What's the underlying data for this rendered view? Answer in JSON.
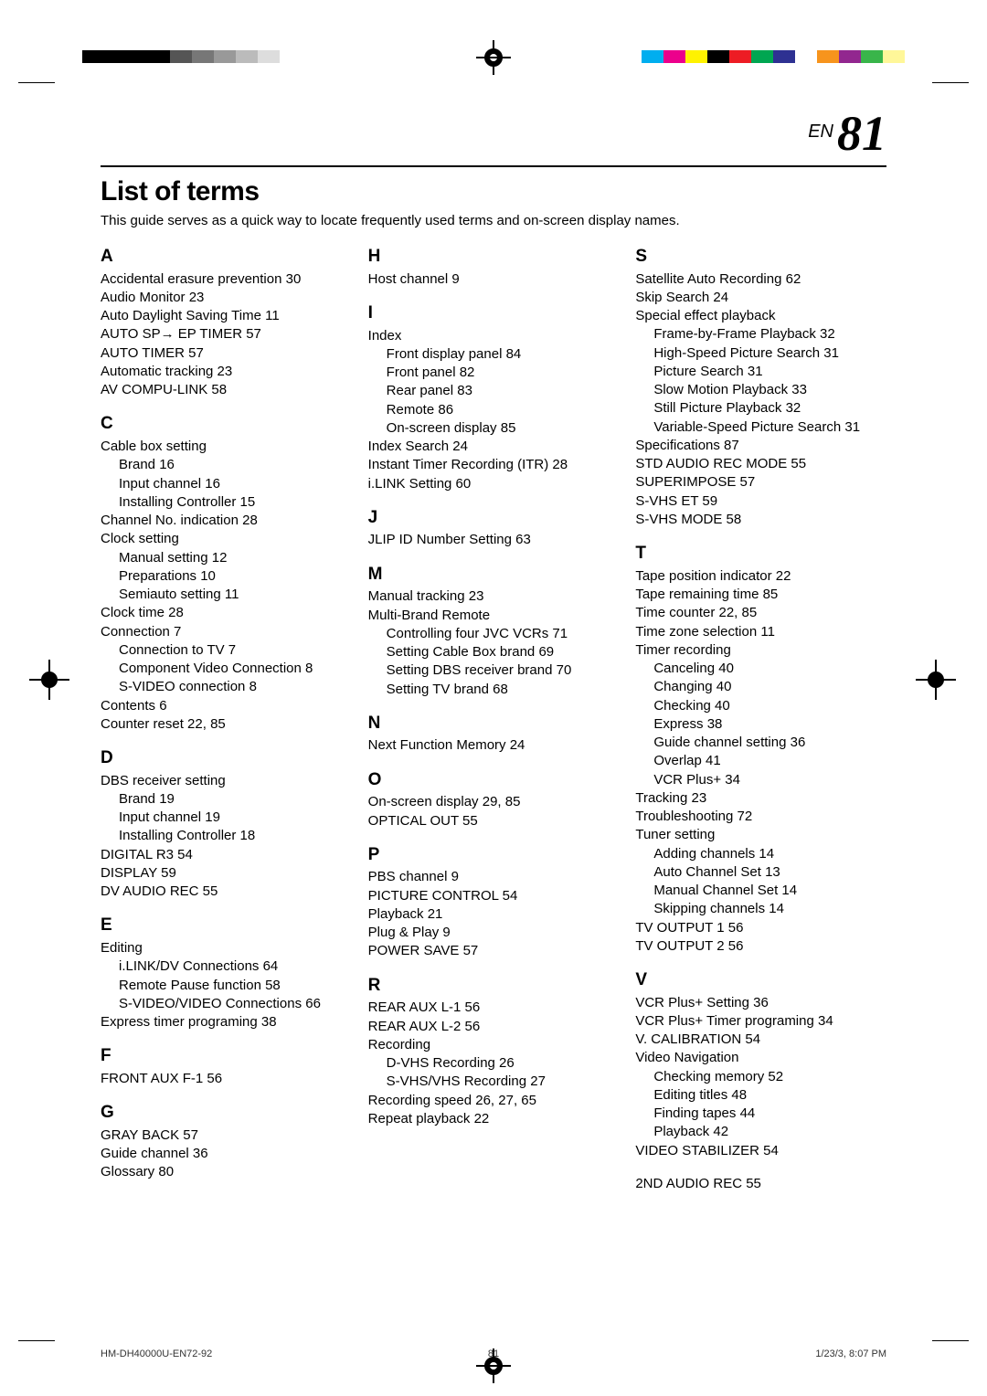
{
  "header": {
    "en": "EN",
    "page": "81"
  },
  "title": "List of terms",
  "intro": "This guide serves as a quick way to locate frequently used terms and on-screen display names.",
  "bw_bars": [
    "#000000",
    "#000000",
    "#000000",
    "#000000",
    "#555555",
    "#777777",
    "#999999",
    "#bbbbbb",
    "#dddddd"
  ],
  "color_bars": [
    "#00aeef",
    "#ec008c",
    "#fff200",
    "#000000",
    "#ed1c24",
    "#00a651",
    "#2e3192",
    "#ffffff",
    "#f7941d",
    "#92278f",
    "#39b54a",
    "#fff799"
  ],
  "columns": [
    [
      {
        "letter": "A",
        "items": [
          {
            "t": "Accidental erasure prevention  30"
          },
          {
            "t": "Audio Monitor  23"
          },
          {
            "t": "Auto Daylight Saving Time  11"
          },
          {
            "t": "AUTO SP→ EP TIMER 57"
          },
          {
            "t": "AUTO TIMER  57"
          },
          {
            "t": "Automatic tracking  23"
          },
          {
            "t": "AV COMPU-LINK  58"
          }
        ]
      },
      {
        "letter": "C",
        "items": [
          {
            "t": "Cable box setting"
          },
          {
            "t": "Brand  16",
            "sub": true
          },
          {
            "t": "Input channel  16",
            "sub": true
          },
          {
            "t": "Installing Controller  15",
            "sub": true
          },
          {
            "t": "Channel No. indication  28"
          },
          {
            "t": "Clock setting"
          },
          {
            "t": "Manual setting  12",
            "sub": true
          },
          {
            "t": "Preparations  10",
            "sub": true
          },
          {
            "t": "Semiauto setting  11",
            "sub": true
          },
          {
            "t": "Clock time  28"
          },
          {
            "t": "Connection  7"
          },
          {
            "t": "Connection to TV  7",
            "sub": true
          },
          {
            "t": "Component Video Connection  8",
            "sub": true
          },
          {
            "t": "S-VIDEO connection  8",
            "sub": true
          },
          {
            "t": "Contents  6"
          },
          {
            "t": "Counter reset  22, 85"
          }
        ]
      },
      {
        "letter": "D",
        "items": [
          {
            "t": "DBS receiver setting"
          },
          {
            "t": "Brand  19",
            "sub": true
          },
          {
            "t": "Input channel  19",
            "sub": true
          },
          {
            "t": "Installing Controller  18",
            "sub": true
          },
          {
            "t": "DIGITAL R3  54"
          },
          {
            "t": "DISPLAY  59"
          },
          {
            "t": "DV AUDIO REC  55"
          }
        ]
      },
      {
        "letter": "E",
        "items": [
          {
            "t": "Editing"
          },
          {
            "t": "i.LINK/DV Connections  64",
            "sub": true
          },
          {
            "t": "Remote Pause function  58",
            "sub": true
          },
          {
            "t": "S-VIDEO/VIDEO Connections  66",
            "sub": true
          },
          {
            "t": "Express timer programing  38"
          }
        ]
      },
      {
        "letter": "F",
        "items": [
          {
            "t": "FRONT AUX F-1  56"
          }
        ]
      },
      {
        "letter": "G",
        "items": [
          {
            "t": "GRAY BACK  57"
          },
          {
            "t": "Guide channel  36"
          },
          {
            "t": "Glossary  80"
          }
        ]
      }
    ],
    [
      {
        "letter": "H",
        "items": [
          {
            "t": "Host channel  9"
          }
        ]
      },
      {
        "letter": "I",
        "items": [
          {
            "t": "Index"
          },
          {
            "t": "Front display panel  84",
            "sub": true
          },
          {
            "t": "Front panel  82",
            "sub": true
          },
          {
            "t": "Rear panel  83",
            "sub": true
          },
          {
            "t": "Remote  86",
            "sub": true
          },
          {
            "t": "On-screen display  85",
            "sub": true
          },
          {
            "t": "Index Search  24"
          },
          {
            "t": "Instant Timer Recording (ITR)  28"
          },
          {
            "t": "i.LINK Setting  60"
          }
        ]
      },
      {
        "letter": "J",
        "items": [
          {
            "t": "JLIP ID Number Setting  63"
          }
        ]
      },
      {
        "letter": "M",
        "items": [
          {
            "t": "Manual tracking  23"
          },
          {
            "t": "Multi-Brand Remote"
          },
          {
            "t": "Controlling four JVC VCRs  71",
            "sub": true
          },
          {
            "t": "Setting Cable Box brand  69",
            "sub": true
          },
          {
            "t": "Setting DBS receiver brand  70",
            "sub": true
          },
          {
            "t": "Setting TV brand  68",
            "sub": true
          }
        ]
      },
      {
        "letter": "N",
        "items": [
          {
            "t": "Next Function Memory  24"
          }
        ]
      },
      {
        "letter": "O",
        "items": [
          {
            "t": "On-screen display  29, 85"
          },
          {
            "t": "OPTICAL OUT  55"
          }
        ]
      },
      {
        "letter": "P",
        "items": [
          {
            "t": "PBS channel  9"
          },
          {
            "t": "PICTURE CONTROL  54"
          },
          {
            "t": "Playback  21"
          },
          {
            "t": "Plug & Play  9"
          },
          {
            "t": "POWER SAVE  57"
          }
        ]
      },
      {
        "letter": "R",
        "items": [
          {
            "t": "REAR AUX L-1  56"
          },
          {
            "t": "REAR AUX L-2  56"
          },
          {
            "t": "Recording"
          },
          {
            "t": "D-VHS Recording  26",
            "sub": true
          },
          {
            "t": "S-VHS/VHS Recording  27",
            "sub": true
          },
          {
            "t": "Recording speed  26, 27, 65"
          },
          {
            "t": "Repeat playback  22"
          }
        ]
      }
    ],
    [
      {
        "letter": "S",
        "items": [
          {
            "t": "Satellite Auto Recording  62"
          },
          {
            "t": "Skip Search  24"
          },
          {
            "t": "Special effect playback"
          },
          {
            "t": "Frame-by-Frame Playback  32",
            "sub": true
          },
          {
            "t": "High-Speed Picture Search  31",
            "sub": true
          },
          {
            "t": "Picture Search  31",
            "sub": true
          },
          {
            "t": "Slow Motion Playback  33",
            "sub": true
          },
          {
            "t": "Still Picture Playback  32",
            "sub": true
          },
          {
            "t": "Variable-Speed Picture Search  31",
            "sub": true
          },
          {
            "t": "Specifications  87"
          },
          {
            "t": "STD AUDIO REC MODE  55"
          },
          {
            "t": "SUPERIMPOSE  57"
          },
          {
            "t": "S-VHS ET  59"
          },
          {
            "t": "S-VHS MODE  58"
          }
        ]
      },
      {
        "letter": "T",
        "items": [
          {
            "t": "Tape position indicator  22"
          },
          {
            "t": "Tape remaining time  85"
          },
          {
            "t": "Time counter  22, 85"
          },
          {
            "t": "Time zone selection  11"
          },
          {
            "t": "Timer recording"
          },
          {
            "t": "Canceling  40",
            "sub": true
          },
          {
            "t": "Changing  40",
            "sub": true
          },
          {
            "t": "Checking  40",
            "sub": true
          },
          {
            "t": "Express  38",
            "sub": true
          },
          {
            "t": "Guide channel setting  36",
            "sub": true
          },
          {
            "t": "Overlap  41",
            "sub": true
          },
          {
            "t": "VCR Plus+  34",
            "sub": true
          },
          {
            "t": "Tracking  23"
          },
          {
            "t": "Troubleshooting  72"
          },
          {
            "t": "Tuner setting"
          },
          {
            "t": "Adding channels  14",
            "sub": true
          },
          {
            "t": "Auto Channel Set  13",
            "sub": true
          },
          {
            "t": "Manual Channel Set  14",
            "sub": true
          },
          {
            "t": "Skipping channels  14",
            "sub": true
          },
          {
            "t": "TV OUTPUT 1  56"
          },
          {
            "t": "TV OUTPUT 2  56"
          }
        ]
      },
      {
        "letter": "V",
        "items": [
          {
            "t": "VCR Plus+ Setting  36"
          },
          {
            "t": "VCR Plus+ Timer programing  34"
          },
          {
            "t": "V. CALIBRATION 54"
          },
          {
            "t": "Video Navigation"
          },
          {
            "t": "Checking memory 52",
            "sub": true
          },
          {
            "t": "Editing titles 48",
            "sub": true
          },
          {
            "t": "Finding tapes  44",
            "sub": true
          },
          {
            "t": "Playback 42",
            "sub": true
          },
          {
            "t": "VIDEO STABILIZER  54"
          }
        ]
      },
      {
        "letter": "",
        "items": [
          {
            "t": "2ND AUDIO REC  55"
          }
        ]
      }
    ]
  ],
  "footer": {
    "left": "HM-DH40000U-EN72-92",
    "mid": "81",
    "right": "1/23/3, 8:07 PM"
  }
}
